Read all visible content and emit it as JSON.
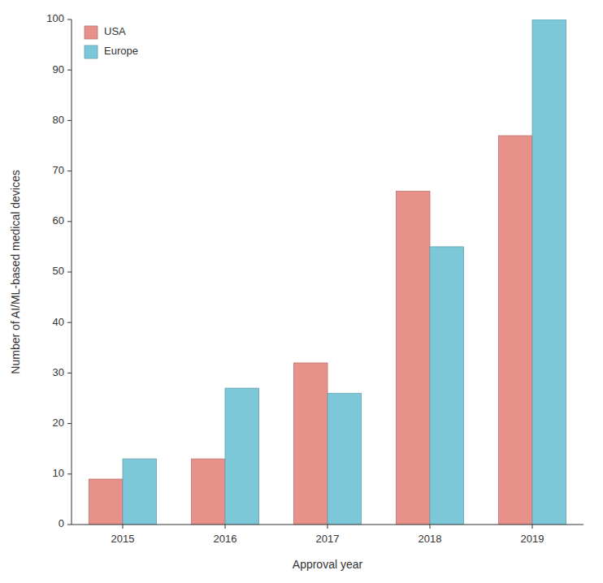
{
  "chart_data": {
    "type": "bar",
    "categories": [
      "2015",
      "2016",
      "2017",
      "2018",
      "2019"
    ],
    "series": [
      {
        "name": "USA",
        "color": "#E8918A",
        "values": [
          9,
          13,
          32,
          66,
          77
        ]
      },
      {
        "name": "Europe",
        "color": "#7DC8D8",
        "values": [
          13,
          27,
          26,
          55,
          100
        ]
      }
    ],
    "xlabel": "Approval year",
    "ylabel": "Number of AI/ML-based medical devices",
    "ylim": [
      0,
      100
    ],
    "yticks": [
      0,
      10,
      20,
      30,
      40,
      50,
      60,
      70,
      80,
      90,
      100
    ],
    "legend": "upper left"
  }
}
